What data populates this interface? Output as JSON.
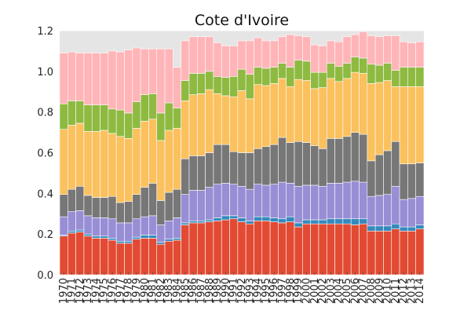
{
  "chart_data": {
    "type": "bar",
    "stacked": true,
    "title": "Cote d'Ivoire",
    "xlabel": "",
    "ylabel": "",
    "ylim": [
      0,
      1.2
    ],
    "yticks": [
      "0.0",
      "0.2",
      "0.4",
      "0.6",
      "0.8",
      "1.0",
      "1.2"
    ],
    "grid": true,
    "legend": "none",
    "categories": [
      "1970",
      "1971",
      "1972",
      "1973",
      "1974",
      "1975",
      "1976",
      "1977",
      "1978",
      "1979",
      "1980",
      "1981",
      "1982",
      "1983",
      "1984",
      "1985",
      "1986",
      "1987",
      "1988",
      "1989",
      "1990",
      "1991",
      "1992",
      "1993",
      "1994",
      "1995",
      "1996",
      "1997",
      "1998",
      "1999",
      "2000",
      "2001",
      "2002",
      "2003",
      "2004",
      "2005",
      "2006",
      "2007",
      "2008",
      "2009",
      "2010",
      "2011",
      "2012",
      "2013",
      "2014"
    ],
    "series": [
      {
        "color": "#e24a33",
        "values": [
          0.19,
          0.205,
          0.21,
          0.19,
          0.18,
          0.18,
          0.17,
          0.155,
          0.155,
          0.175,
          0.18,
          0.18,
          0.15,
          0.165,
          0.17,
          0.245,
          0.255,
          0.255,
          0.26,
          0.265,
          0.27,
          0.275,
          0.26,
          0.25,
          0.265,
          0.265,
          0.26,
          0.255,
          0.26,
          0.235,
          0.25,
          0.25,
          0.25,
          0.25,
          0.25,
          0.25,
          0.245,
          0.25,
          0.215,
          0.215,
          0.215,
          0.225,
          0.215,
          0.215,
          0.225
        ]
      },
      {
        "color": "#348abd",
        "values": [
          0.005,
          0.01,
          0.01,
          0.01,
          0.01,
          0.01,
          0.01,
          0.01,
          0.01,
          0.01,
          0.015,
          0.015,
          0.01,
          0.01,
          0.01,
          0.01,
          0.01,
          0.01,
          0.01,
          0.015,
          0.02,
          0.015,
          0.02,
          0.015,
          0.02,
          0.02,
          0.02,
          0.02,
          0.025,
          0.02,
          0.02,
          0.02,
          0.02,
          0.025,
          0.025,
          0.025,
          0.03,
          0.025,
          0.025,
          0.025,
          0.025,
          0.025,
          0.02,
          0.02,
          0.02
        ]
      },
      {
        "color": "#988ed5",
        "values": [
          0.09,
          0.095,
          0.095,
          0.09,
          0.09,
          0.09,
          0.095,
          0.09,
          0.09,
          0.09,
          0.09,
          0.095,
          0.085,
          0.09,
          0.1,
          0.14,
          0.15,
          0.15,
          0.16,
          0.165,
          0.16,
          0.155,
          0.155,
          0.155,
          0.16,
          0.155,
          0.165,
          0.18,
          0.165,
          0.18,
          0.17,
          0.17,
          0.165,
          0.175,
          0.175,
          0.18,
          0.185,
          0.18,
          0.145,
          0.15,
          0.155,
          0.185,
          0.135,
          0.14,
          0.14
        ]
      },
      {
        "color": "#777777",
        "values": [
          0.11,
          0.11,
          0.12,
          0.1,
          0.1,
          0.1,
          0.11,
          0.1,
          0.105,
          0.12,
          0.145,
          0.16,
          0.12,
          0.14,
          0.14,
          0.175,
          0.17,
          0.17,
          0.17,
          0.195,
          0.19,
          0.16,
          0.165,
          0.18,
          0.175,
          0.19,
          0.195,
          0.22,
          0.2,
          0.22,
          0.21,
          0.195,
          0.185,
          0.22,
          0.22,
          0.225,
          0.24,
          0.235,
          0.175,
          0.2,
          0.215,
          0.22,
          0.175,
          0.17,
          0.165
        ]
      },
      {
        "color": "#fbc15e",
        "values": [
          0.32,
          0.315,
          0.31,
          0.315,
          0.325,
          0.33,
          0.31,
          0.325,
          0.31,
          0.325,
          0.325,
          0.315,
          0.295,
          0.305,
          0.3,
          0.285,
          0.3,
          0.305,
          0.31,
          0.25,
          0.24,
          0.27,
          0.305,
          0.265,
          0.315,
          0.3,
          0.3,
          0.29,
          0.275,
          0.305,
          0.305,
          0.28,
          0.3,
          0.295,
          0.28,
          0.285,
          0.295,
          0.3,
          0.38,
          0.355,
          0.345,
          0.27,
          0.38,
          0.38,
          0.375
        ]
      },
      {
        "color": "#8eba42",
        "values": [
          0.125,
          0.12,
          0.11,
          0.13,
          0.13,
          0.125,
          0.12,
          0.13,
          0.125,
          0.13,
          0.13,
          0.125,
          0.135,
          0.135,
          0.1,
          0.1,
          0.105,
          0.1,
          0.09,
          0.085,
          0.09,
          0.1,
          0.105,
          0.12,
          0.085,
          0.085,
          0.08,
          0.075,
          0.095,
          0.095,
          0.095,
          0.08,
          0.075,
          0.075,
          0.075,
          0.075,
          0.075,
          0.075,
          0.095,
          0.085,
          0.085,
          0.08,
          0.095,
          0.095,
          0.095
        ]
      },
      {
        "color": "#ffb5b8",
        "values": [
          0.25,
          0.24,
          0.235,
          0.255,
          0.255,
          0.255,
          0.285,
          0.285,
          0.31,
          0.265,
          0.225,
          0.22,
          0.315,
          0.265,
          0.2,
          0.195,
          0.18,
          0.18,
          0.17,
          0.165,
          0.155,
          0.15,
          0.14,
          0.165,
          0.145,
          0.135,
          0.13,
          0.13,
          0.16,
          0.12,
          0.12,
          0.135,
          0.13,
          0.11,
          0.12,
          0.13,
          0.11,
          0.13,
          0.14,
          0.14,
          0.135,
          0.17,
          0.125,
          0.12,
          0.125
        ]
      }
    ]
  }
}
